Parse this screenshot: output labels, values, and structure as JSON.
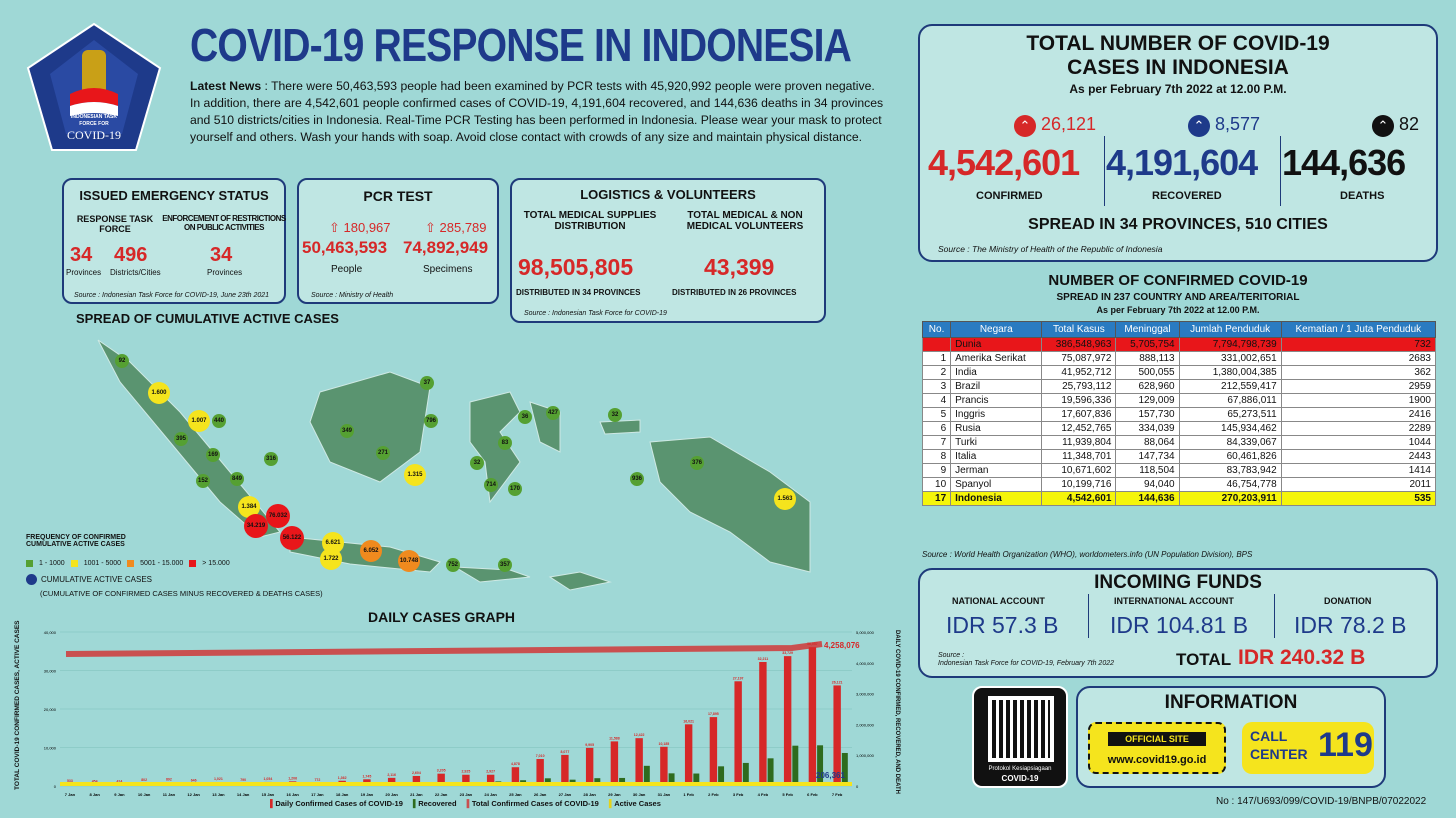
{
  "header": {
    "title": "COVID-19 RESPONSE IN INDONESIA",
    "logo_line1": "INDONESIAN TASK",
    "logo_line2": "FORCE FOR",
    "logo_line3": "COVID-19"
  },
  "news": {
    "label": "Latest News",
    "text": " : There were 50,463,593 people had been examined by PCR tests with 45,920,992 people were proven negative. In addition, there are 4,542,601 people confirmed cases of COVID-19, 4,191,604 recovered, and 144,636 deaths in 34 provinces and 510 districts/cities in Indonesia. Real-Time PCR Testing has been performed in Indonesia. Please wear your mask to protect yourself and others. Wash your hands with soap. Avoid close contact with crowds of any size and maintain physical distance."
  },
  "emergency": {
    "title": "ISSUED EMERGENCY STATUS",
    "rtf_label": "RESPONSE TASK FORCE",
    "rtf_prov": "34",
    "rtf_prov_label": "Provinces",
    "rtf_dist": "496",
    "rtf_dist_label": "Districts/Cities",
    "enf_label": "ENFORCEMENT OF RESTRICTIONS ON PUBLIC ACTIVITIES",
    "enf_num": "34",
    "enf_prov_label": "Provinces",
    "source": "Source : Indonesian Task Force for COVID-19, June 23th 2021"
  },
  "pcr": {
    "title": "PCR TEST",
    "inc1": "180,967",
    "inc2": "285,789",
    "people": "50,463,593",
    "people_label": "People",
    "specimens": "74,892,949",
    "specimens_label": "Specimens",
    "source": "Source : Ministry of Health"
  },
  "logistics": {
    "title": "LOGISTICS & VOLUNTEERS",
    "med_label": "TOTAL MEDICAL SUPPLIES DISTRIBUTION",
    "med_value": "98,505,805",
    "med_dist": "DISTRIBUTED IN 34 PROVINCES",
    "vol_label": "TOTAL MEDICAL & NON MEDICAL VOLUNTEERS",
    "vol_value": "43,399",
    "vol_dist": "DISTRIBUTED IN 26 PROVINCES",
    "source": "Source : Indonesian Task Force for COVID-19"
  },
  "map": {
    "title": "SPREAD OF CUMULATIVE ACTIVE CASES",
    "legend_title": "FREQUENCY OF CONFIRMED CUMULATIVE ACTIVE CASES",
    "l1": "1 - 1000",
    "l2": "1001 - 5000",
    "l3": "5001 - 15.000",
    "l4": "> 15.000",
    "cum_label": "CUMULATIVE ACTIVE CASES",
    "cum_note": "(CUMULATIVE OF CONFIRMED CASES MINUS RECOVERED & DEATHS CASES)",
    "points": [
      "92",
      "1.600",
      "1.007",
      "440",
      "395",
      "316",
      "169",
      "152",
      "849",
      "1.384",
      "76.032",
      "34.219",
      "56.122",
      "6.621",
      "1.722",
      "6.052",
      "10.748",
      "752",
      "357",
      "37",
      "349",
      "796",
      "271",
      "1.315",
      "36",
      "427",
      "32",
      "83",
      "32",
      "714",
      "170",
      "936",
      "376",
      "1.563"
    ]
  },
  "totals": {
    "title1": "TOTAL NUMBER OF COVID-19",
    "title2": "CASES IN INDONESIA",
    "asof": "As per February 7th 2022 at 12.00 P.M.",
    "conf_inc": "26,121",
    "conf": "4,542,601",
    "conf_label": "CONFIRMED",
    "rec_inc": "8,577",
    "rec": "4,191,604",
    "rec_label": "RECOVERED",
    "death_inc": "82",
    "death": "144,636",
    "death_label": "DEATHS",
    "spread": "SPREAD IN 34 PROVINCES, 510 CITIES",
    "source": "Source : The Ministry of Health of the Republic of Indonesia"
  },
  "world": {
    "title": "NUMBER OF CONFIRMED COVID-19",
    "subtitle": "SPREAD IN 237 COUNTRY AND AREA/TERITORIAL",
    "asof": "As per February 7th 2022 at 12.00 P.M.",
    "headers": [
      "No.",
      "Negara",
      "Total Kasus",
      "Meninggal",
      "Jumlah Penduduk",
      "Kematian / 1 Juta Penduduk"
    ],
    "world_row": [
      "",
      "Dunia",
      "386,548,963",
      "5,705,754",
      "7,794,798,739",
      "732"
    ],
    "rows": [
      [
        "1",
        "Amerika Serikat",
        "75,087,972",
        "888,113",
        "331,002,651",
        "2683"
      ],
      [
        "2",
        "India",
        "41,952,712",
        "500,055",
        "1,380,004,385",
        "362"
      ],
      [
        "3",
        "Brazil",
        "25,793,112",
        "628,960",
        "212,559,417",
        "2959"
      ],
      [
        "4",
        "Prancis",
        "19,596,336",
        "129,009",
        "67,886,011",
        "1900"
      ],
      [
        "5",
        "Inggris",
        "17,607,836",
        "157,730",
        "65,273,511",
        "2416"
      ],
      [
        "6",
        "Rusia",
        "12,452,765",
        "334,039",
        "145,934,462",
        "2289"
      ],
      [
        "7",
        "Turki",
        "11,939,804",
        "88,064",
        "84,339,067",
        "1044"
      ],
      [
        "8",
        "Italia",
        "11,348,701",
        "147,734",
        "60,461,826",
        "2443"
      ],
      [
        "9",
        "Jerman",
        "10,671,602",
        "118,504",
        "83,783,942",
        "1414"
      ],
      [
        "10",
        "Spanyol",
        "10,199,716",
        "94,040",
        "46,754,778",
        "2011"
      ]
    ],
    "indo_row": [
      "17",
      "Indonesia",
      "4,542,601",
      "144,636",
      "270,203,911",
      "535"
    ],
    "source": "Source : World Health Organization (WHO), worldometers.info (UN Population Division), BPS"
  },
  "funds": {
    "title": "INCOMING FUNDS",
    "nat_label": "NATIONAL ACCOUNT",
    "nat": "IDR 57.3 B",
    "int_label": "INTERNATIONAL ACCOUNT",
    "int": "IDR 104.81 B",
    "don_label": "DONATION",
    "don": "IDR 78.2 B",
    "total_label": "TOTAL",
    "total": "IDR 240.32 B",
    "source1": "Source :",
    "source2": "Indonesian Task Force for COVID-19, February 7th 2022"
  },
  "info": {
    "title": "INFORMATION",
    "qr_label1": "Protokol Kesiapsiagaan",
    "qr_label2": "COVID-19",
    "official": "OFFICIAL SITE",
    "site": "www.covid19.go.id",
    "call1": "CALL",
    "call2": "CENTER",
    "call_num": "119"
  },
  "footer": {
    "doc_no": "No : 147/U693/099/COVID-19/BNPB/07022022"
  },
  "chart_data": {
    "type": "bar",
    "title": "DAILY CASES GRAPH",
    "ylabel": "TOTAL COVID-19 CONFIRMED CASES, ACTIVE CASES",
    "y2label": "DAILY COVID-19 CONFIRMED, RECOVERED, AND DEATH",
    "categories": [
      "7 Jan",
      "8 Jan",
      "9 Jan",
      "10 Jan",
      "11 Jan",
      "12 Jan",
      "13 Jan",
      "14 Jan",
      "15 Jan",
      "16 Jan",
      "17 Jan",
      "18 Jan",
      "19 Jan",
      "20 Jan",
      "21 Jan",
      "22 Jan",
      "23 Jan",
      "24 Jan",
      "25 Jan",
      "26 Jan",
      "27 Jan",
      "28 Jan",
      "29 Jan",
      "30 Jan",
      "31 Jan",
      "1 Feb",
      "2 Feb",
      "3 Feb",
      "4 Feb",
      "5 Feb",
      "6 Feb",
      "7 Feb"
    ],
    "daily_confirmed": [
      533,
      454,
      414,
      802,
      892,
      646,
      1021,
      790,
      1054,
      1206,
      772,
      1362,
      1745,
      2116,
      2604,
      3205,
      2925,
      2927,
      4878,
      7010,
      8077,
      9905,
      11588,
      12422,
      10185,
      16021,
      17895,
      27197,
      32211,
      33729,
      36057,
      26121
    ],
    "recovered": [
      200,
      150,
      180,
      230,
      300,
      250,
      320,
      280,
      300,
      400,
      350,
      500,
      600,
      700,
      800,
      900,
      1000,
      1200,
      1500,
      2000,
      1643,
      2028,
      2090,
      5241,
      3290,
      3240,
      5110,
      5993,
      7190,
      10471,
      10569,
      8577
    ],
    "ylim": [
      0,
      40000
    ],
    "yticks": [
      "0",
      "10,000",
      "20,000",
      "30,000",
      "40,000"
    ],
    "y2ticks": [
      "0",
      "1,000,000",
      "2,000,000",
      "3,000,000",
      "4,000,000",
      "5,000,000"
    ],
    "total_label": "4,258,076",
    "active_label": "206,361",
    "peak_labels": [
      "27,197",
      "32,211",
      "33,729",
      "36,057",
      "26,121"
    ],
    "legend": [
      "Daily Confirmed Cases of COVID-19",
      "Recovered",
      "Total Confirmed Cases of COVID-19",
      "Active Cases"
    ],
    "colors": {
      "confirmed": "#d62828",
      "recovered": "#2e6b1e",
      "total": "#c95050",
      "active": "#f5e41d"
    }
  }
}
